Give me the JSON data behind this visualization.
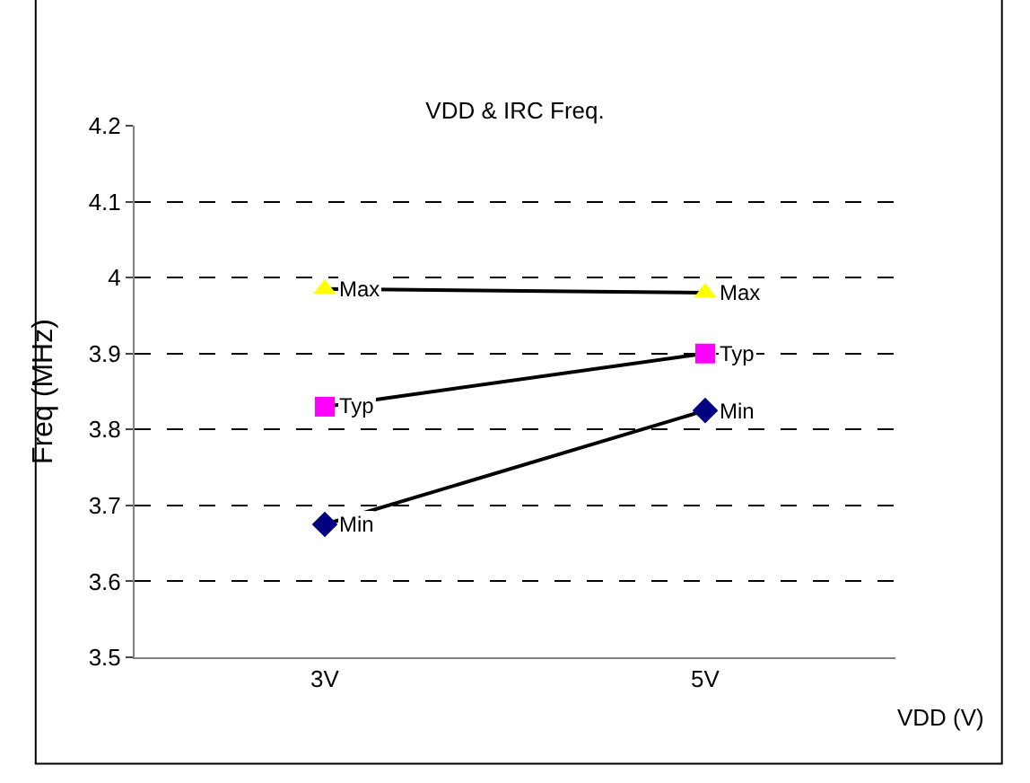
{
  "chart_data": {
    "type": "line",
    "title": "VDD & IRC Freq.",
    "xlabel": "VDD (V)",
    "ylabel": "Freq (MHz)",
    "categories": [
      "3V",
      "5V"
    ],
    "series": [
      {
        "name": "Max",
        "color": "#ffff00",
        "marker": "triangle",
        "values": [
          3.985,
          3.98
        ]
      },
      {
        "name": "Typ",
        "color": "#ff00ff",
        "marker": "square",
        "values": [
          3.83,
          3.9
        ]
      },
      {
        "name": "Min",
        "color": "#000080",
        "marker": "diamond",
        "values": [
          3.675,
          3.825
        ]
      }
    ],
    "ylim": [
      3.5,
      4.2
    ],
    "yticks": [
      3.5,
      3.6,
      3.7,
      3.8,
      3.9,
      4,
      4.1,
      4.2
    ],
    "grid": "y",
    "legend": false,
    "line_style": "solid"
  }
}
